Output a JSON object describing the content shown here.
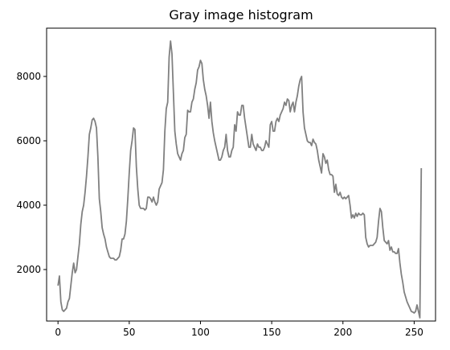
{
  "chart_data": {
    "type": "line",
    "title": "Gray image histogram",
    "xlabel": "",
    "ylabel": "",
    "xlim": [
      -8,
      265
    ],
    "ylim": [
      400,
      9500
    ],
    "xticks": [
      0,
      50,
      100,
      150,
      200,
      250
    ],
    "yticks": [
      2000,
      4000,
      6000,
      8000
    ],
    "grid": false,
    "series": [
      {
        "color": "#808080",
        "x": [
          0,
          1,
          2,
          3,
          4,
          5,
          6,
          7,
          8,
          9,
          10,
          11,
          12,
          13,
          14,
          15,
          16,
          17,
          18,
          19,
          20,
          21,
          22,
          23,
          24,
          25,
          26,
          27,
          28,
          29,
          30,
          31,
          32,
          33,
          34,
          35,
          36,
          37,
          38,
          39,
          40,
          41,
          42,
          43,
          44,
          45,
          46,
          47,
          48,
          49,
          50,
          51,
          52,
          53,
          54,
          55,
          56,
          57,
          58,
          59,
          60,
          61,
          62,
          63,
          64,
          65,
          66,
          67,
          68,
          69,
          70,
          71,
          72,
          73,
          74,
          75,
          76,
          77,
          78,
          79,
          80,
          81,
          82,
          83,
          84,
          85,
          86,
          87,
          88,
          89,
          90,
          91,
          92,
          93,
          94,
          95,
          96,
          97,
          98,
          99,
          100,
          101,
          102,
          103,
          104,
          105,
          106,
          107,
          108,
          109,
          110,
          111,
          112,
          113,
          114,
          115,
          116,
          117,
          118,
          119,
          120,
          121,
          122,
          123,
          124,
          125,
          126,
          127,
          128,
          129,
          130,
          131,
          132,
          133,
          134,
          135,
          136,
          137,
          138,
          139,
          140,
          141,
          142,
          143,
          144,
          145,
          146,
          147,
          148,
          149,
          150,
          151,
          152,
          153,
          154,
          155,
          156,
          157,
          158,
          159,
          160,
          161,
          162,
          163,
          164,
          165,
          166,
          167,
          168,
          169,
          170,
          171,
          172,
          173,
          174,
          175,
          176,
          177,
          178,
          179,
          180,
          181,
          182,
          183,
          184,
          185,
          186,
          187,
          188,
          189,
          190,
          191,
          192,
          193,
          194,
          195,
          196,
          197,
          198,
          199,
          200,
          201,
          202,
          203,
          204,
          205,
          206,
          207,
          208,
          209,
          210,
          211,
          212,
          213,
          214,
          215,
          216,
          217,
          218,
          219,
          220,
          221,
          222,
          223,
          224,
          225,
          226,
          227,
          228,
          229,
          230,
          231,
          232,
          233,
          234,
          235,
          236,
          237,
          238,
          239,
          240,
          241,
          242,
          243,
          244,
          245,
          246,
          247,
          248,
          249,
          250,
          251,
          252,
          253,
          254,
          255
        ],
        "values": [
          1500,
          1800,
          1000,
          750,
          700,
          750,
          800,
          1000,
          1100,
          1500,
          1900,
          2200,
          1900,
          2000,
          2400,
          2800,
          3400,
          3800,
          4000,
          4400,
          4900,
          5500,
          6200,
          6400,
          6650,
          6700,
          6600,
          6400,
          5500,
          4200,
          3800,
          3300,
          3100,
          2950,
          2700,
          2550,
          2400,
          2350,
          2350,
          2350,
          2300,
          2300,
          2350,
          2400,
          2600,
          2950,
          2950,
          3100,
          3500,
          4200,
          5000,
          5700,
          6000,
          6400,
          6350,
          5200,
          4500,
          4000,
          3900,
          3900,
          3900,
          3850,
          3900,
          4250,
          4250,
          4200,
          4100,
          4250,
          4100,
          4000,
          4100,
          4500,
          4600,
          4700,
          5100,
          6300,
          7000,
          7200,
          8600,
          9100,
          8700,
          7500,
          6300,
          5900,
          5600,
          5500,
          5400,
          5600,
          5700,
          6100,
          6200,
          6950,
          6900,
          6900,
          7200,
          7300,
          7600,
          7800,
          8200,
          8300,
          8500,
          8400,
          7900,
          7600,
          7400,
          7100,
          6700,
          7200,
          6600,
          6250,
          6000,
          5800,
          5600,
          5400,
          5400,
          5500,
          5700,
          5800,
          6200,
          5700,
          5500,
          5500,
          5700,
          5800,
          6500,
          6300,
          6900,
          6800,
          6800,
          7100,
          7100,
          6700,
          6400,
          6100,
          5800,
          5800,
          6200,
          5900,
          5800,
          5700,
          5900,
          5800,
          5800,
          5700,
          5700,
          5800,
          6000,
          5900,
          5800,
          6500,
          6600,
          6300,
          6300,
          6600,
          6700,
          6600,
          6800,
          6900,
          7000,
          7200,
          7100,
          7300,
          7250,
          6900,
          7100,
          7200,
          6900,
          7200,
          7400,
          7700,
          7900,
          8000,
          6900,
          6400,
          6200,
          6000,
          5950,
          5950,
          5850,
          6050,
          5950,
          5900,
          5700,
          5400,
          5200,
          5000,
          5600,
          5500,
          5300,
          5400,
          5100,
          4950,
          4950,
          4900,
          4400,
          4650,
          4350,
          4300,
          4400,
          4250,
          4200,
          4250,
          4200,
          4250,
          4300,
          4000,
          3600,
          3700,
          3600,
          3750,
          3650,
          3750,
          3700,
          3700,
          3750,
          3700,
          3000,
          2800,
          2700,
          2750,
          2750,
          2750,
          2800,
          2850,
          3000,
          3500,
          3900,
          3800,
          3300,
          2900,
          2850,
          2800,
          2900,
          2600,
          2700,
          2550,
          2550,
          2500,
          2500,
          2650,
          2200,
          1850,
          1600,
          1300,
          1150,
          1000,
          900,
          800,
          700,
          680,
          650,
          700,
          900,
          700,
          500,
          5150
        ]
      }
    ]
  }
}
